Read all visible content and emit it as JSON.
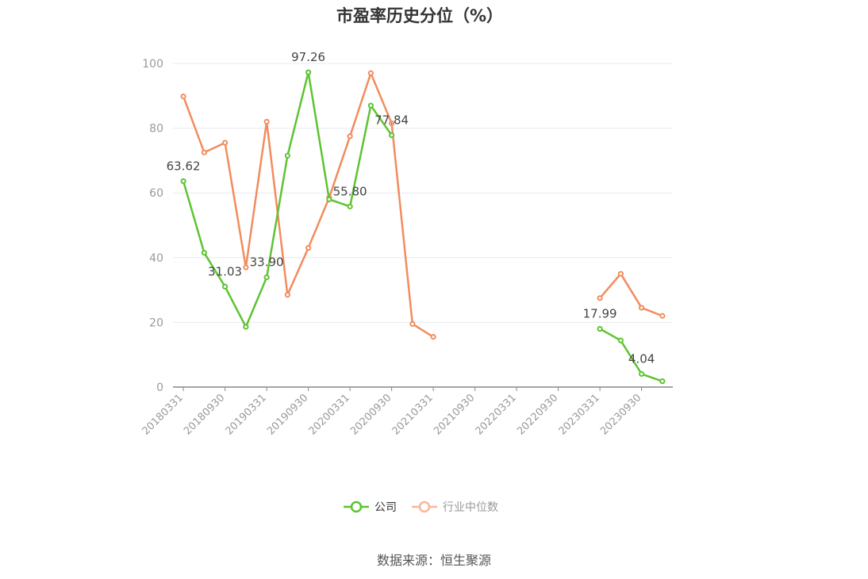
{
  "title": "市盈率历史分位（%）",
  "source": "数据来源：恒生聚源",
  "colors": {
    "company": "#5dc431",
    "industry": "#f28c5e",
    "grid": "#e6e9f2",
    "axis": "#888888"
  },
  "legend": [
    {
      "name": "公司",
      "color": "#5dc431",
      "active": true
    },
    {
      "name": "行业中位数",
      "color": "#f9b69a",
      "active": false
    }
  ],
  "chart_data": {
    "type": "line",
    "title": "市盈率历史分位（%）",
    "ylim": [
      0,
      100
    ],
    "yticks": [
      0,
      20,
      40,
      60,
      80,
      100
    ],
    "grid": true,
    "legend_position": "bottom",
    "x": [
      "20180331",
      "20180630",
      "20180930",
      "20181231",
      "20190331",
      "20190630",
      "20190930",
      "20191231",
      "20200331",
      "20200630",
      "20200930",
      "20201231",
      "20210331",
      "20210630",
      "20210930",
      "20211231",
      "20220331",
      "20220630",
      "20220930",
      "20221231",
      "20230331",
      "20230630",
      "20230930",
      "20231231"
    ],
    "xtick_labels": [
      "20180331",
      "20180930",
      "20190331",
      "20190930",
      "20200331",
      "20200930",
      "20210331",
      "20210930",
      "20220331",
      "20220930",
      "20230331",
      "20230930"
    ],
    "series": [
      {
        "name": "公司",
        "color": "#5dc431",
        "values": [
          63.62,
          41.5,
          31.03,
          18.6,
          33.9,
          71.5,
          97.26,
          58.0,
          55.8,
          87.0,
          77.84,
          null,
          null,
          null,
          null,
          null,
          null,
          null,
          null,
          null,
          17.99,
          14.4,
          4.04,
          1.8
        ],
        "labels": {
          "0": "63.62",
          "2": "31.03",
          "4": "33.90",
          "6": "97.26",
          "8": "55.80",
          "10": "77.84",
          "20": "17.99",
          "22": "4.04"
        }
      },
      {
        "name": "行业中位数",
        "color": "#f28c5e",
        "values": [
          89.8,
          72.5,
          75.5,
          37.0,
          82.0,
          28.5,
          43.0,
          58.5,
          77.5,
          97.0,
          81.5,
          19.5,
          15.5,
          null,
          null,
          null,
          null,
          null,
          null,
          null,
          27.5,
          35.0,
          24.5,
          22.0
        ]
      }
    ]
  }
}
